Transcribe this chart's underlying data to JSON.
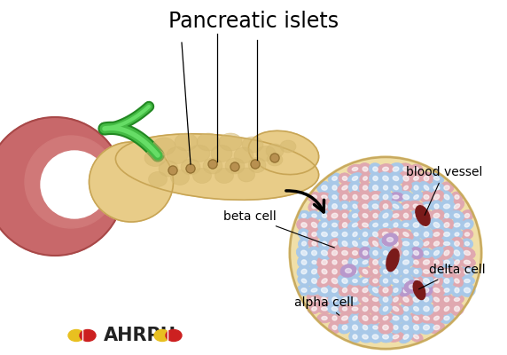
{
  "title": "Pancreatic islets",
  "title_fontsize": 17,
  "background_color": "#ffffff",
  "labels": {
    "beta_cell": "beta cell",
    "alpha_cell": "alpha cell",
    "delta_cell": "delta cell",
    "blood_vessel": "blood vessel"
  },
  "label_fontsize": 10,
  "watermark": "AHRPH",
  "watermark_fontsize": 15,
  "pancreas_color": "#e8cc88",
  "pancreas_outline": "#c8a555",
  "pancreas_texture": "#d4b870",
  "stomach_color": "#c8686a",
  "stomach_dark": "#a84848",
  "stomach_inner": "#b05858",
  "duct_color_outer": "#228822",
  "duct_color_main": "#44bb44",
  "duct_color_inner": "#66dd66",
  "cell_blue": "#a8c8e8",
  "cell_blue_border": "#6898c0",
  "cell_pink": "#e0a8b0",
  "cell_pink_border": "#c07888",
  "cell_purple": "#b898cc",
  "cell_purple_border": "#8868aa",
  "cell_darkred": "#7a1a1a",
  "islet_outer_bg": "#f0dfa8",
  "islet_outer_border": "#c8aa60"
}
